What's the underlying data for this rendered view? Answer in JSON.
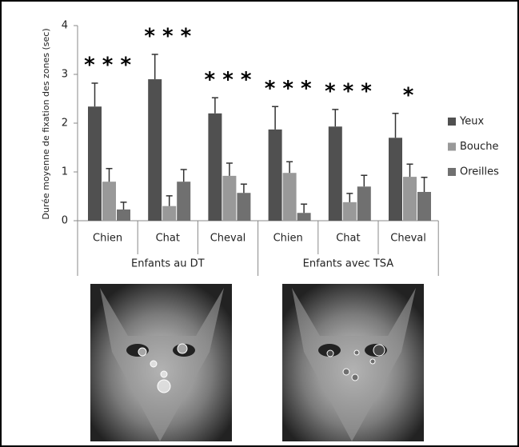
{
  "chart_data": {
    "type": "bar",
    "y_label": "Durée moyenne de fixation des zones (sec)",
    "groups": [
      {
        "label": "Enfants au DT",
        "categories": [
          "Chien",
          "Chat",
          "Cheval"
        ]
      },
      {
        "label": "Enfants avec TSA",
        "categories": [
          "Chien",
          "Chat",
          "Cheval"
        ]
      }
    ],
    "series": [
      {
        "name": "Yeux",
        "color": "#505050",
        "values": [
          2.34,
          2.9,
          2.2,
          1.87,
          1.93,
          1.7
        ],
        "errors": [
          0.48,
          0.51,
          0.32,
          0.47,
          0.35,
          0.5
        ]
      },
      {
        "name": "Bouche",
        "color": "#999999",
        "values": [
          0.8,
          0.3,
          0.92,
          0.98,
          0.38,
          0.9
        ],
        "errors": [
          0.27,
          0.21,
          0.26,
          0.23,
          0.18,
          0.26
        ]
      },
      {
        "name": "Oreilles",
        "color": "#707070",
        "values": [
          0.23,
          0.8,
          0.57,
          0.16,
          0.7,
          0.59
        ],
        "errors": [
          0.15,
          0.25,
          0.18,
          0.18,
          0.23,
          0.3
        ]
      }
    ],
    "significance": [
      "* * *",
      "* * *",
      "* * *",
      "* * *",
      "* * *",
      "*"
    ],
    "ylim": [
      0,
      4
    ],
    "yticks": [
      0,
      1,
      2,
      3,
      4
    ],
    "grid": false,
    "legend": "right"
  }
}
